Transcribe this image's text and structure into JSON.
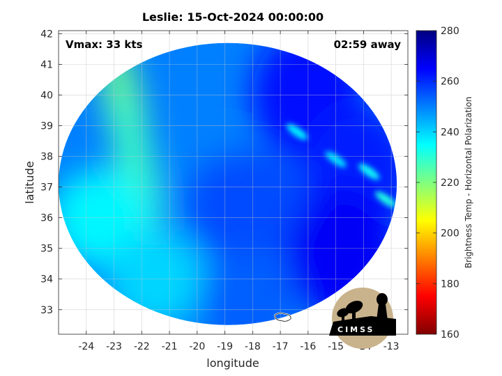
{
  "chart_data": {
    "type": "heatmap",
    "title": "Leslie: 15-Oct-2024 00:00:00",
    "xlabel": "longitude",
    "ylabel": "latitude",
    "xlim": [
      -25,
      -12.4
    ],
    "ylim": [
      32.2,
      42.1
    ],
    "x_ticks": [
      -24,
      -23,
      -22,
      -21,
      -20,
      -19,
      -18,
      -17,
      -16,
      -15,
      -14,
      -13
    ],
    "y_ticks": [
      33,
      34,
      35,
      36,
      37,
      38,
      39,
      40,
      41,
      42
    ],
    "grid": true,
    "annotations": {
      "vmax": "Vmax: 33 kts",
      "time_away": "02:59 away"
    },
    "colorbar": {
      "label": "Brightness Temp - Horizontal Polarization",
      "range": [
        160,
        280
      ],
      "ticks": [
        160,
        180,
        200,
        220,
        240,
        260,
        280
      ],
      "colormap": "jet",
      "placement": "right"
    },
    "swath": {
      "shape": "ellipse",
      "center_lon": -18.9,
      "center_lat": 37.1,
      "lon_radius": 6.1,
      "lat_radius": 4.6
    },
    "field_regions": [
      {
        "name": "western-band",
        "lon": -22.6,
        "lat": 39.5,
        "value": 222
      },
      {
        "name": "western-band-south",
        "lon": -22.2,
        "lat": 37.6,
        "value": 228
      },
      {
        "name": "west-swath",
        "lon": -23.5,
        "lat": 36.0,
        "value": 236
      },
      {
        "name": "southwest-swath",
        "lon": -21.5,
        "lat": 34.0,
        "value": 240
      },
      {
        "name": "central",
        "lon": -19.2,
        "lat": 37.0,
        "value": 250
      },
      {
        "name": "storm-core",
        "lon": -18.2,
        "lat": 36.4,
        "value": 256
      },
      {
        "name": "northeast",
        "lon": -16.0,
        "lat": 40.0,
        "value": 263
      },
      {
        "name": "east",
        "lon": -14.2,
        "lat": 37.5,
        "value": 262
      },
      {
        "name": "southeast",
        "lon": -14.8,
        "lat": 34.8,
        "value": 266
      },
      {
        "name": "south",
        "lon": -18.2,
        "lat": 33.3,
        "value": 254
      }
    ],
    "cold_streaks": [
      {
        "lon": -16.4,
        "lat": 38.8,
        "value": 236
      },
      {
        "lon": -15.0,
        "lat": 37.9,
        "value": 238
      },
      {
        "lon": -13.8,
        "lat": 37.5,
        "value": 234
      },
      {
        "lon": -13.2,
        "lat": 36.6,
        "value": 232
      }
    ],
    "coastline": {
      "lon": -16.9,
      "lat": 32.75
    }
  },
  "logo": {
    "text": "CIMSS",
    "colors": {
      "disc": "#c9b38c",
      "silhouette": "#000000"
    }
  },
  "colors": {
    "axis": "#262626",
    "grid": "#d9d9d9"
  }
}
